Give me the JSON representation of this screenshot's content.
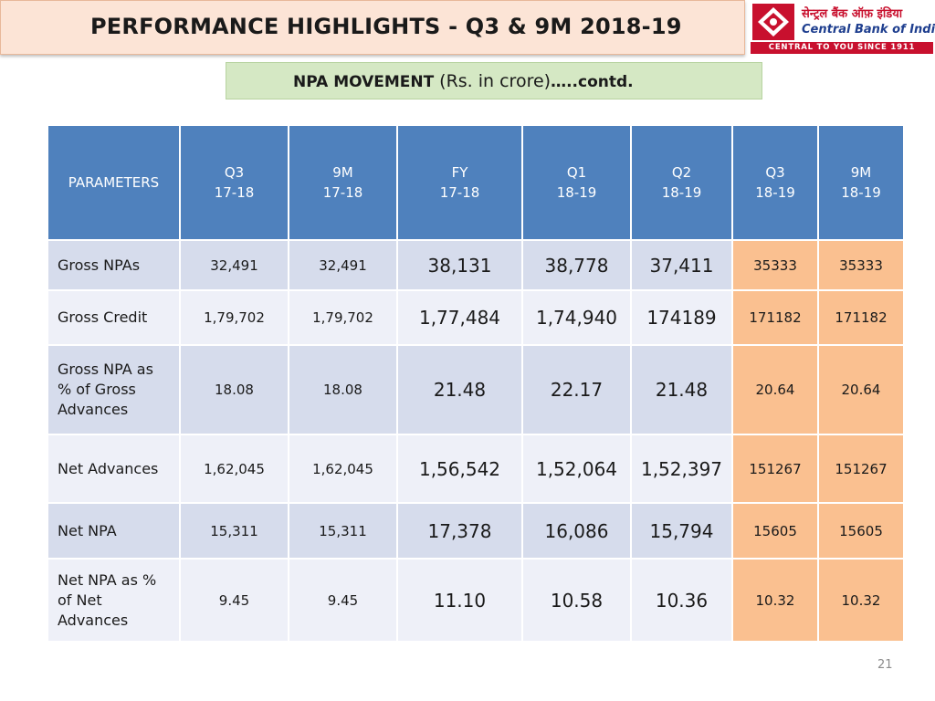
{
  "header": {
    "title": "PERFORMANCE HIGHLIGHTS - Q3 & 9M 2018-19"
  },
  "logo": {
    "hindi_name": "सेन्ट्रल बैंक ऑफ़ इंडिया",
    "english_name": "Central Bank of India",
    "tagline": "CENTRAL TO YOU SINCE 1911",
    "brand_color": "#c8102e"
  },
  "subtitle": {
    "part1": "NPA MOVEMENT ",
    "part2": "(Rs. in crore)",
    "part3": "…..contd."
  },
  "table": {
    "header_param": "PARAMETERS",
    "columns": [
      {
        "line1": "Q3",
        "line2": "17-18"
      },
      {
        "line1": "9M",
        "line2": "17-18"
      },
      {
        "line1": "FY",
        "line2": "17-18"
      },
      {
        "line1": "Q1",
        "line2": "18-19"
      },
      {
        "line1": "Q2",
        "line2": "18-19"
      },
      {
        "line1": "Q3",
        "line2": "18-19"
      },
      {
        "line1": "9M",
        "line2": "18-19"
      }
    ],
    "rows": [
      {
        "label_lines": [
          "Gross NPAs"
        ],
        "values": [
          "32,491",
          "32,491",
          "38,131",
          "38,778",
          "37,411",
          "35333",
          "35333"
        ]
      },
      {
        "label_lines": [
          "Gross Credit"
        ],
        "values": [
          "1,79,702",
          "1,79,702",
          "1,77,484",
          "1,74,940",
          "174189",
          "171182",
          "171182"
        ]
      },
      {
        "label_lines": [
          "Gross NPA as",
          "% of Gross",
          "Advances"
        ],
        "values": [
          "18.08",
          "18.08",
          "21.48",
          "22.17",
          "21.48",
          "20.64",
          "20.64"
        ]
      },
      {
        "label_lines": [
          "Net Advances"
        ],
        "values": [
          "1,62,045",
          "1,62,045",
          "1,56,542",
          "1,52,064",
          "1,52,397",
          "151267",
          "151267"
        ]
      },
      {
        "label_lines": [
          "Net NPA"
        ],
        "values": [
          "15,311",
          "15,311",
          "17,378",
          "16,086",
          "15,794",
          "15605",
          "15605"
        ]
      },
      {
        "label_lines": [
          "Net NPA as %",
          "of Net",
          "Advances"
        ],
        "values": [
          "9.45",
          "9.45",
          "11.10",
          "10.58",
          "10.36",
          "10.32",
          "10.32"
        ]
      }
    ]
  },
  "colors": {
    "header_blue": "#4f81bd",
    "row_dark": "#d6dcec",
    "row_light": "#eef0f8",
    "highlight": "#fac090",
    "title_bg": "#fce4d6",
    "subtitle_bg": "#d5e8c4"
  },
  "footer": {
    "page_number": "21"
  }
}
